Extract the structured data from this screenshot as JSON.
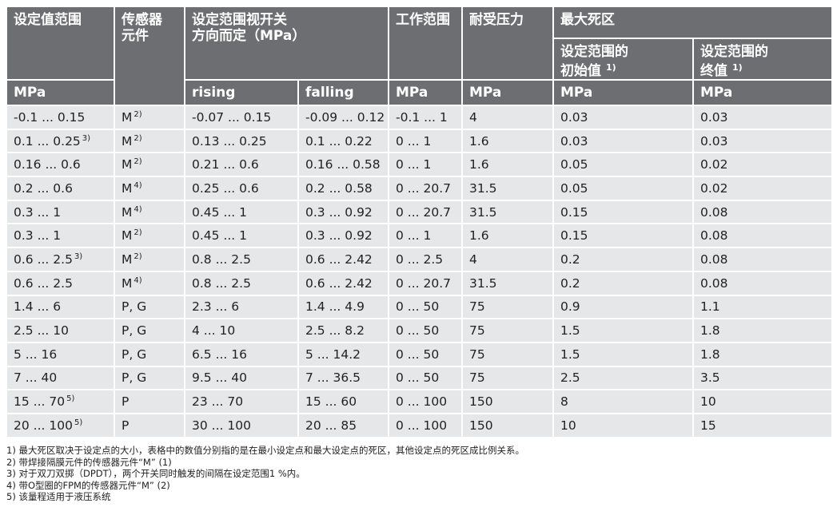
{
  "table": {
    "header": {
      "h0": "设定值范围",
      "h1": "传感器\n元件",
      "h2": "设定范围视开关\n方向而定（MPa）",
      "h3": "工作范围",
      "h4": "耐受压力",
      "h5": "最大死区",
      "h6": {
        "text": "设定范围的\n初始值",
        "sup": "1)"
      },
      "h7": {
        "text": "设定范围的\n终值",
        "sup": "1)"
      }
    },
    "units": [
      "MPa",
      "rising",
      "falling",
      "MPa",
      "MPa",
      "MPa",
      "MPa"
    ],
    "rows": [
      [
        "-0.1 ... 0.15",
        {
          "text": "M",
          "sup": "2)"
        },
        "-0.07 ... 0.15",
        "-0.09 ... 0.12",
        "-0.1 ... 1",
        "4",
        "0.03",
        "0.03"
      ],
      [
        {
          "text": "0.1 ... 0.25",
          "sup": "3)"
        },
        {
          "text": "M",
          "sup": "2)"
        },
        "0.13 ... 0.25",
        "0.1 ... 0.22",
        "0 ... 1",
        "1.6",
        "0.03",
        "0.03"
      ],
      [
        "0.16 ... 0.6",
        {
          "text": "M",
          "sup": "2)"
        },
        "0.21 ... 0.6",
        "0.16 ... 0.58",
        "0 ... 1",
        "1.6",
        "0.05",
        "0.02"
      ],
      [
        "0.2 ... 0.6",
        {
          "text": "M",
          "sup": "4)"
        },
        "0.25 ... 0.6",
        "0.2 ... 0.58",
        "0 ... 20.7",
        "31.5",
        "0.05",
        "0.02"
      ],
      [
        "0.3 ... 1",
        {
          "text": "M",
          "sup": "4)"
        },
        "0.45 ... 1",
        "0.3 ... 0.92",
        "0 ... 20.7",
        "31.5",
        "0.15",
        "0.08"
      ],
      [
        "0.3 ... 1",
        {
          "text": "M",
          "sup": "2)"
        },
        "0.45 ... 1",
        "0.3 ... 0.92",
        "0 ... 1",
        "1.6",
        "0.15",
        "0.08"
      ],
      [
        {
          "text": "0.6 ... 2.5",
          "sup": "3)"
        },
        {
          "text": "M",
          "sup": "2)"
        },
        "0.8 ... 2.5",
        "0.6 ... 2.42",
        "0 ... 2.5",
        "4",
        "0.2",
        "0.08"
      ],
      [
        "0.6 ... 2.5",
        {
          "text": "M",
          "sup": "4)"
        },
        "0.8 ... 2.5",
        "0.6 ... 2.42",
        "0 ... 20.7",
        "31.5",
        "0.2",
        "0.08"
      ],
      [
        "1.4 ... 6",
        "P, G",
        "2.3 ... 6",
        "1.4 ... 4.9",
        "0 ... 50",
        "75",
        "0.9",
        "1.1"
      ],
      [
        "2.5 ... 10",
        "P, G",
        "4 ... 10",
        "2.5 ... 8.2",
        "0 ... 50",
        "75",
        "1.5",
        "1.8"
      ],
      [
        "5 ... 16",
        "P, G",
        "6.5 ... 16",
        "5 ... 14.2",
        "0 ... 50",
        "75",
        "1.5",
        "1.8"
      ],
      [
        "7 ... 40",
        "P, G",
        "9.5 ... 40",
        "7 ... 36.5",
        "0 ... 50",
        "75",
        "2.5",
        "3.5"
      ],
      [
        {
          "text": "15 ... 70",
          "sup": "5)"
        },
        "P",
        "23 ... 70",
        "15 ... 60",
        "0 ... 100",
        "150",
        "8",
        "10"
      ],
      [
        {
          "text": "20 ... 100",
          "sup": "5)"
        },
        "P",
        "30 ... 100",
        "20 ... 85",
        "0 ... 100",
        "150",
        "10",
        "15"
      ]
    ]
  },
  "footnotes": [
    "1) 最大死区取决于设定点的大小，表格中的数值分别指的是在最小设定点和最大设定点的死区，其他设定点的死区成比例关系。",
    "2) 带焊接隔膜元件的传感器元件“M” (1)",
    "3) 对于双刀双掷（DPDT），两个开关同时触发的间隔在设定范围1 %内。",
    "4) 带O型圈的FPM的传感器元件“M” (2)",
    "5) 该量程适用于液压系统"
  ]
}
